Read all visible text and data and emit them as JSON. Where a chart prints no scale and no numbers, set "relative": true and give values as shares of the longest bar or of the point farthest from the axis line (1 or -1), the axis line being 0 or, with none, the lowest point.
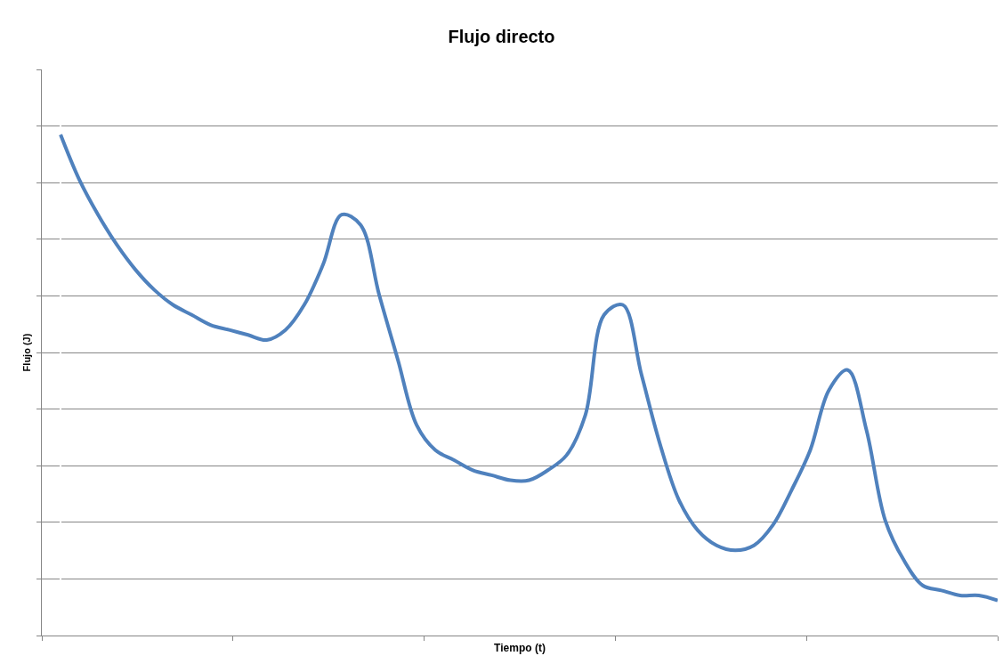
{
  "chart_data": {
    "type": "line",
    "title": "Flujo directo",
    "xlabel": "Tiempo (t)",
    "ylabel": "Flujo (J)",
    "relative": true,
    "grid": "y",
    "marker": "none",
    "line_style": "solid",
    "categories": [
      null,
      null,
      null,
      null,
      null,
      null,
      null,
      null,
      null,
      null,
      null,
      null,
      null,
      null,
      null,
      null,
      null,
      null,
      null,
      null,
      null,
      null,
      null,
      null,
      null,
      null,
      null,
      null,
      null,
      null,
      null,
      null,
      null,
      null,
      null,
      null,
      null,
      null,
      null,
      null,
      null,
      null,
      null,
      null,
      null,
      null,
      null,
      null,
      null,
      null,
      null
    ],
    "series": [
      {
        "color": "#4f81bd",
        "values": [
          1.0,
          0.91,
          0.84,
          0.78,
          0.73,
          0.69,
          0.66,
          0.64,
          0.62,
          0.61,
          0.6,
          0.59,
          0.61,
          0.66,
          0.74,
          0.84,
          0.82,
          0.68,
          0.55,
          0.42,
          0.37,
          0.35,
          0.33,
          0.32,
          0.31,
          0.31,
          0.33,
          0.36,
          0.44,
          0.64,
          0.66,
          0.52,
          0.38,
          0.27,
          0.21,
          0.18,
          0.17,
          0.18,
          0.22,
          0.29,
          0.37,
          0.49,
          0.53,
          0.41,
          0.23,
          0.15,
          0.1,
          0.09,
          0.08,
          0.08,
          0.07
        ]
      }
    ]
  }
}
